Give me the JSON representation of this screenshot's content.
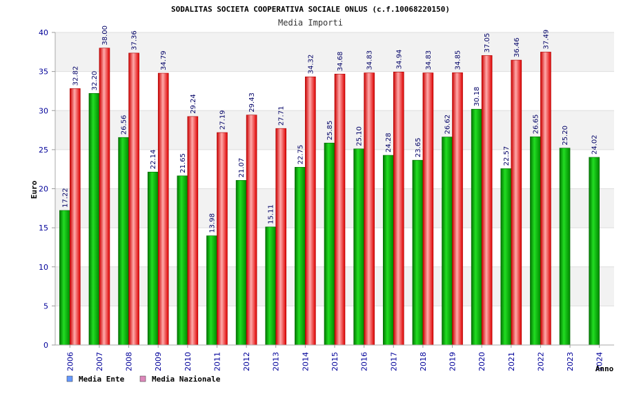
{
  "chart_data": {
    "type": "bar",
    "title": "SODALITAS SOCIETA COOPERATIVA SOCIALE ONLUS (c.f.10068220150)",
    "subtitle": "Media Importi",
    "xlabel": "Anno",
    "ylabel": "Euro",
    "ylim": [
      0,
      40
    ],
    "yticks": [
      "0",
      "5",
      "10",
      "15",
      "20",
      "25",
      "30",
      "35",
      "40"
    ],
    "categories": [
      "2006",
      "2007",
      "2008",
      "2009",
      "2010",
      "2011",
      "2012",
      "2013",
      "2014",
      "2015",
      "2016",
      "2017",
      "2018",
      "2019",
      "2020",
      "2021",
      "2022",
      "2023",
      "2024"
    ],
    "series": [
      {
        "name": "Media Ente",
        "color": "#00aa00",
        "legend_color": "#6699ff",
        "values": [
          17.22,
          32.2,
          26.56,
          22.14,
          21.65,
          13.98,
          21.07,
          15.11,
          22.75,
          25.85,
          25.1,
          24.28,
          23.65,
          26.62,
          30.18,
          22.57,
          26.65,
          25.2,
          24.02
        ],
        "labels": [
          "17.22",
          "32.20",
          "26.56",
          "22.14",
          "21.65",
          "13.98",
          "21.07",
          "15.11",
          "22.75",
          "25.85",
          "25.10",
          "24.28",
          "23.65",
          "26.62",
          "30.18",
          "22.57",
          "26.65",
          "25.20",
          "24.02"
        ]
      },
      {
        "name": "Media Nazionale",
        "color": "#ee1111",
        "legend_color": "#dd88bb",
        "values": [
          32.82,
          38.0,
          37.36,
          34.79,
          29.24,
          27.19,
          29.43,
          27.71,
          34.32,
          34.68,
          34.83,
          34.94,
          34.83,
          34.85,
          37.05,
          36.46,
          37.49,
          null,
          null
        ],
        "labels": [
          "32.82",
          "38.00",
          "37.36",
          "34.79",
          "29.24",
          "27.19",
          "29.43",
          "27.71",
          "34.32",
          "34.68",
          "34.83",
          "34.94",
          "34.83",
          "34.85",
          "37.05",
          "36.46",
          "37.49",
          null,
          null
        ]
      }
    ],
    "grid": true,
    "legend_position": "bottom-left"
  }
}
